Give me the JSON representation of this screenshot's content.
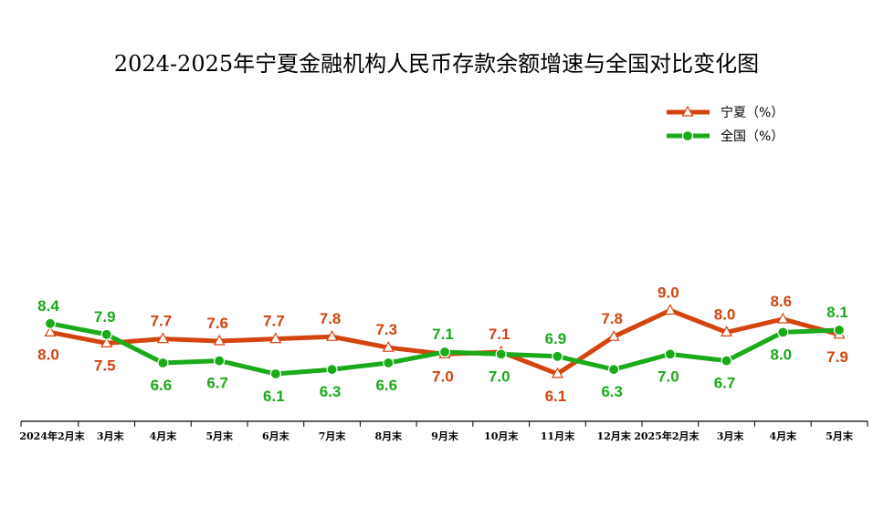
{
  "chart_data": {
    "type": "line",
    "title": "2024-2025年宁夏金融机构人民币存款余额增速与全国对比变化图",
    "categories": [
      "2024年2月末",
      "3月末",
      "4月末",
      "5月末",
      "6月末",
      "7月末",
      "8月末",
      "9月末",
      "10月末",
      "11月末",
      "12月末",
      "2025年2月末",
      "3月末",
      "4月末",
      "5月末"
    ],
    "series": [
      {
        "name": "宁夏（%）",
        "color": "#d4440f",
        "marker": "triangle",
        "values": [
          8.0,
          7.5,
          7.7,
          7.6,
          7.7,
          7.8,
          7.3,
          7.0,
          7.1,
          6.1,
          7.8,
          9.0,
          8.0,
          8.6,
          7.9
        ]
      },
      {
        "name": "全国（%）",
        "color": "#1aaa1a",
        "marker": "circle",
        "values": [
          8.4,
          7.9,
          6.6,
          6.7,
          6.1,
          6.3,
          6.6,
          7.1,
          7.0,
          6.9,
          6.3,
          7.0,
          6.7,
          8.0,
          8.1
        ]
      }
    ],
    "legend_position": "top-right",
    "grid": false
  }
}
